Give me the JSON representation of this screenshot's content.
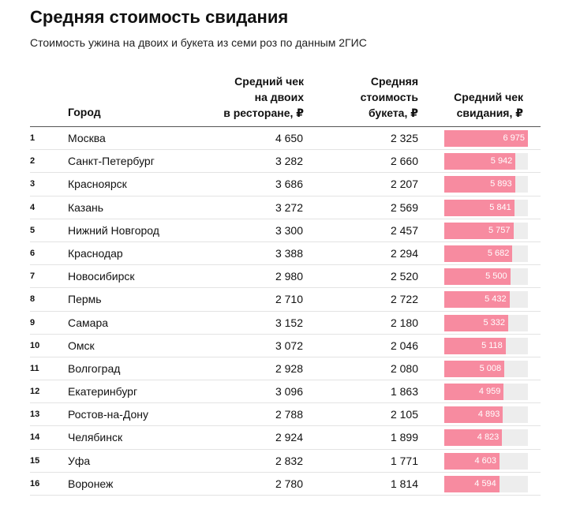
{
  "title": "Средняя стоимость свидания",
  "subtitle": "Стоимость ужина на двоих и букета из семи роз по данным 2ГИС",
  "headers": {
    "city": "Город",
    "restaurant": [
      "Средний чек",
      "на двоих",
      "в ресторане, ₽"
    ],
    "bouquet": [
      "Средняя",
      "стоимость",
      "букета, ₽"
    ],
    "date": [
      "Средний чек",
      "свидания, ₽"
    ]
  },
  "colors": {
    "bar": "#f78ba0",
    "track": "#ededed"
  },
  "chart_data": {
    "type": "table",
    "title": "Средняя стоимость свидания",
    "bar_max": 6975,
    "rows": [
      {
        "rank": "1",
        "city": "Москва",
        "restaurant": "4 650",
        "bouquet": "2 325",
        "date": "6 975",
        "date_value": 6975
      },
      {
        "rank": "2",
        "city": "Санкт-Петербург",
        "restaurant": "3 282",
        "bouquet": "2 660",
        "date": "5 942",
        "date_value": 5942
      },
      {
        "rank": "3",
        "city": "Красноярск",
        "restaurant": "3 686",
        "bouquet": "2 207",
        "date": "5 893",
        "date_value": 5893
      },
      {
        "rank": "4",
        "city": "Казань",
        "restaurant": "3 272",
        "bouquet": "2 569",
        "date": "5 841",
        "date_value": 5841
      },
      {
        "rank": "5",
        "city": "Нижний Новгород",
        "restaurant": "3 300",
        "bouquet": "2 457",
        "date": "5 757",
        "date_value": 5757
      },
      {
        "rank": "6",
        "city": "Краснодар",
        "restaurant": "3 388",
        "bouquet": "2 294",
        "date": "5 682",
        "date_value": 5682
      },
      {
        "rank": "7",
        "city": "Новосибирск",
        "restaurant": "2 980",
        "bouquet": "2 520",
        "date": "5 500",
        "date_value": 5500
      },
      {
        "rank": "8",
        "city": "Пермь",
        "restaurant": "2 710",
        "bouquet": "2 722",
        "date": "5 432",
        "date_value": 5432
      },
      {
        "rank": "9",
        "city": "Самара",
        "restaurant": "3 152",
        "bouquet": "2 180",
        "date": "5 332",
        "date_value": 5332
      },
      {
        "rank": "10",
        "city": "Омск",
        "restaurant": "3 072",
        "bouquet": "2 046",
        "date": "5 118",
        "date_value": 5118
      },
      {
        "rank": "11",
        "city": "Волгоград",
        "restaurant": "2 928",
        "bouquet": "2 080",
        "date": "5 008",
        "date_value": 5008
      },
      {
        "rank": "12",
        "city": "Екатеринбург",
        "restaurant": "3 096",
        "bouquet": "1 863",
        "date": "4 959",
        "date_value": 4959
      },
      {
        "rank": "13",
        "city": "Ростов-на-Дону",
        "restaurant": "2 788",
        "bouquet": "2 105",
        "date": "4 893",
        "date_value": 4893
      },
      {
        "rank": "14",
        "city": "Челябинск",
        "restaurant": "2 924",
        "bouquet": "1 899",
        "date": "4 823",
        "date_value": 4823
      },
      {
        "rank": "15",
        "city": "Уфа",
        "restaurant": "2 832",
        "bouquet": "1 771",
        "date": "4 603",
        "date_value": 4603
      },
      {
        "rank": "16",
        "city": "Воронеж",
        "restaurant": "2 780",
        "bouquet": "1 814",
        "date": "4 594",
        "date_value": 4594
      }
    ]
  }
}
